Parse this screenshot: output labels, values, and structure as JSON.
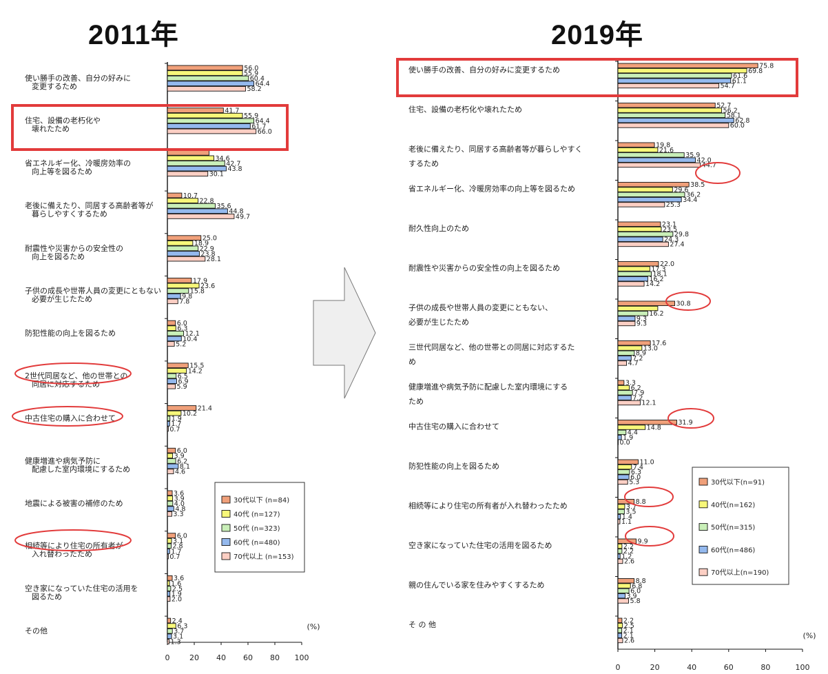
{
  "panels": {
    "left_title": "2011年",
    "right_title": "2019年"
  },
  "colors": {
    "series": [
      "#f0a07a",
      "#f7f77a",
      "#c9efb8",
      "#94b9ee",
      "#fccfc4"
    ],
    "highlight": "#e23b3b"
  },
  "chart_data": [
    {
      "type": "bar",
      "title": "2011年",
      "unit_label": "(%)",
      "xlim": [
        0,
        100
      ],
      "ticks": [
        "0",
        "20",
        "40",
        "60",
        "80",
        "100"
      ],
      "legend_position": "bottom-right",
      "series_names": [
        "30代以下 (n=84)",
        "40代 (n=127)",
        "50代 (n=323)",
        "60代 (n=480)",
        "70代以上 (n=153)"
      ],
      "categories": [
        [
          "使い勝手の改善、自分の好みに",
          "変更するため"
        ],
        [
          "住宅、設備の老朽化や",
          "壊れたため"
        ],
        [
          "省エネルギー化、冷暖房効率の",
          "向上等を図るため"
        ],
        [
          "老後に備えたり、同居する高齢者等が",
          "暮らしやすくするため"
        ],
        [
          "耐震性や災害からの安全性の",
          "向上を図るため"
        ],
        [
          "子供の成長や世帯人員の変更にともない",
          "必要が生じたため"
        ],
        [
          "防犯性能の向上を図るため"
        ],
        [
          "2世代同居など、他の世帯との",
          "同居に対応するため"
        ],
        [
          "中古住宅の購入に合わせて"
        ],
        [
          "健康増進や病気予防に",
          "配慮した室内環境にするため"
        ],
        [
          "地震による被害の補修のため"
        ],
        [
          "相続等により住宅の所有者が",
          "入れ替わったため"
        ],
        [
          "空き家になっていた住宅の活用を",
          "図るため"
        ],
        [
          "その他"
        ]
      ],
      "values": [
        [
          56.0,
          55.9,
          60.4,
          64.4,
          58.2
        ],
        [
          41.7,
          55.9,
          64.4,
          61.7,
          66.0
        ],
        [
          31.0,
          34.6,
          42.7,
          43.8,
          30.1
        ],
        [
          10.7,
          22.8,
          35.6,
          44.8,
          49.7
        ],
        [
          25.0,
          18.9,
          22.9,
          23.8,
          28.1
        ],
        [
          17.9,
          23.6,
          15.8,
          9.8,
          7.8
        ],
        [
          6.0,
          6.3,
          12.1,
          10.4,
          5.2
        ],
        [
          15.5,
          14.2,
          6.5,
          6.9,
          5.9
        ],
        [
          21.4,
          10.2,
          1.9,
          1.7,
          0.7
        ],
        [
          6.0,
          3.9,
          6.2,
          8.1,
          4.6
        ],
        [
          3.6,
          3.9,
          4.0,
          4.8,
          3.3
        ],
        [
          6.0,
          3.1,
          2.8,
          1.7,
          0.7
        ],
        [
          3.6,
          1.6,
          2.5,
          1.9,
          2.0
        ],
        [
          2.4,
          6.3,
          3.7,
          3.1,
          1.3
        ]
      ],
      "value_labels": [
        [
          "56.0",
          "55.9",
          "60.4",
          "64.4",
          "58.2"
        ],
        [
          "41.7",
          "55.9",
          "64.4",
          "61.7",
          "66.0"
        ],
        [
          "",
          "34.6",
          "42.7",
          "43.8",
          "30.1"
        ],
        [
          "10.7",
          "22.8",
          "35.6",
          "44.8",
          "49.7"
        ],
        [
          "25.0",
          "18.9",
          "22.9",
          "23.8",
          "28.1"
        ],
        [
          "17.9",
          "23.6",
          "15.8",
          "9.8",
          "7.8"
        ],
        [
          "6.0",
          "6.3",
          "12.1",
          "10.4",
          "5.2"
        ],
        [
          "15.5",
          "14.2",
          "6.5",
          "6.9",
          "5.9"
        ],
        [
          "21.4",
          "10.2",
          "1.9",
          "1.7",
          "0.7"
        ],
        [
          "6.0",
          "3.9",
          "6.2",
          "8.1",
          "4.6"
        ],
        [
          "3.6",
          "3.9",
          "4.0",
          "4.8",
          "3.3"
        ],
        [
          "6.0",
          "3.1",
          "2.8",
          "1.7",
          "0.7"
        ],
        [
          "3.6",
          "1.6",
          "2.5",
          "1.9",
          "2.0"
        ],
        [
          "2.4",
          "6.3",
          "3.7",
          "3.1",
          "1.3"
        ]
      ],
      "highlighted_categories": [
        1
      ],
      "circled_categories": [
        7,
        8,
        11
      ]
    },
    {
      "type": "bar",
      "title": "2019年",
      "unit_label": "(%)",
      "xlim": [
        0,
        100
      ],
      "ticks": [
        "0",
        "20",
        "40",
        "60",
        "80",
        "100"
      ],
      "legend_position": "bottom-right",
      "series_names": [
        "30代以下(n=91)",
        "40代(n=162)",
        "50代(n=315)",
        "60代(n=486)",
        "70代以上(n=190)"
      ],
      "categories": [
        [
          "使い勝手の改善、自分の好みに変更するため"
        ],
        [
          "住宅、設備の老朽化や壊れたため"
        ],
        [
          "老後に備えたり、同居する高齢者等が暮らしやすく",
          "するため"
        ],
        [
          "省エネルギー化、冷暖房効率の向上等を図るため"
        ],
        [
          "耐久性向上のため"
        ],
        [
          "耐震性や災害からの安全性の向上を図るため"
        ],
        [
          "子供の成長や世帯人員の変更にともない、",
          "必要が生じたため"
        ],
        [
          "三世代同居など、他の世帯との同居に対応するた",
          "め"
        ],
        [
          "健康増進や病気予防に配慮した室内環境にする",
          "ため"
        ],
        [
          "中古住宅の購入に合わせて"
        ],
        [
          "防犯性能の向上を図るため"
        ],
        [
          "相続等により住宅の所有者が入れ替わったため"
        ],
        [
          "空き家になっていた住宅の活用を図るため"
        ],
        [
          "親の住んでいる家を住みやすくするため"
        ],
        [
          "そ の 他"
        ]
      ],
      "values": [
        [
          75.8,
          69.8,
          61.6,
          61.1,
          54.7
        ],
        [
          52.7,
          56.2,
          58.1,
          62.8,
          60.0
        ],
        [
          19.8,
          21.6,
          35.9,
          42.0,
          44.7
        ],
        [
          38.5,
          29.6,
          36.2,
          34.4,
          25.3
        ],
        [
          23.1,
          23.5,
          29.8,
          24.3,
          27.4
        ],
        [
          22.0,
          17.3,
          18.1,
          16.2,
          14.2
        ],
        [
          30.8,
          21.6,
          16.2,
          9.3,
          9.3
        ],
        [
          17.6,
          13.0,
          8.9,
          7.2,
          4.7
        ],
        [
          3.3,
          6.2,
          7.9,
          7.2,
          12.1
        ],
        [
          31.9,
          14.8,
          4.4,
          1.9,
          0.0
        ],
        [
          11.0,
          7.4,
          6.3,
          6.0,
          5.3
        ],
        [
          8.8,
          3.7,
          3.5,
          1.4,
          1.1
        ],
        [
          9.9,
          2.2,
          2.2,
          1.2,
          2.6
        ],
        [
          8.8,
          6.8,
          6.0,
          3.9,
          5.8
        ],
        [
          2.2,
          2.5,
          2.1,
          2.1,
          2.6
        ]
      ],
      "value_labels": [
        [
          "75.8",
          "69.8",
          "61.6",
          "61.1",
          "54.7"
        ],
        [
          "52.7",
          "56.2",
          "58.1",
          "62.8",
          "60.0"
        ],
        [
          "19.8",
          "21.6",
          "35.9",
          "42.0",
          "44.7"
        ],
        [
          "38.5",
          "29.6",
          "36.2",
          "34.4",
          "25.3"
        ],
        [
          "23.1",
          "23.5",
          "29.8",
          "24.3",
          "27.4"
        ],
        [
          "22.0",
          "17.3",
          "18.1",
          "16.2",
          "14.2"
        ],
        [
          "30.8",
          "",
          "16.2",
          "9.3",
          "9.3"
        ],
        [
          "17.6",
          "13.0",
          "8.9",
          "7.2",
          "4.7"
        ],
        [
          "3.3",
          "6.2",
          "7.9",
          "7.2",
          "12.1"
        ],
        [
          "31.9",
          "14.8",
          "4.4",
          "1.9",
          "0.0"
        ],
        [
          "11.0",
          "7.4",
          "6.3",
          "6.0",
          "5.3"
        ],
        [
          "8.8",
          "3.7",
          "3.5",
          "1.4",
          "1.1"
        ],
        [
          "9.9",
          "2.2",
          "2.2",
          "1.2",
          "2.6"
        ],
        [
          "8.8",
          "6.8",
          "6.0",
          "3.9",
          "5.8"
        ],
        [
          "2.2",
          "2.5",
          "2.1",
          "2.1",
          "2.6"
        ]
      ],
      "highlighted_categories": [
        0
      ],
      "circled_values": [
        [
          2,
          4
        ],
        [
          6,
          0
        ],
        [
          9,
          0
        ],
        [
          11,
          0
        ],
        [
          12,
          0
        ]
      ]
    }
  ]
}
